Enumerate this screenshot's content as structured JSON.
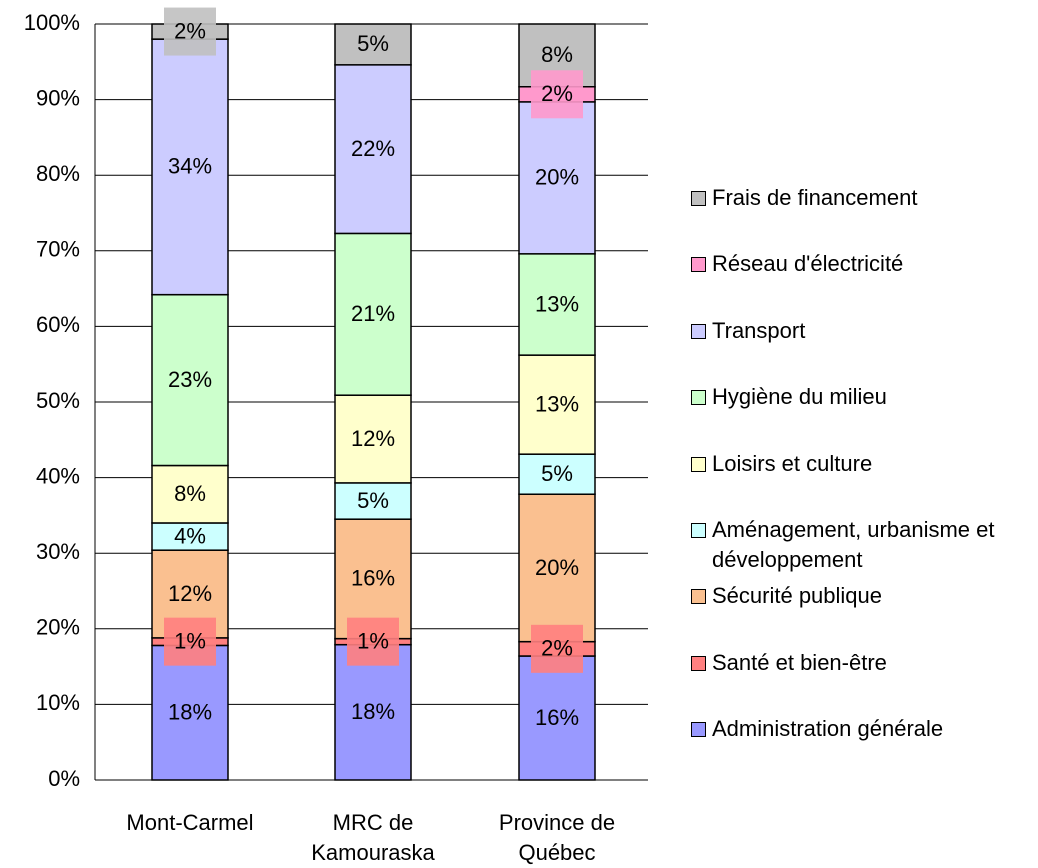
{
  "chart_data": {
    "type": "stacked_bar",
    "categories": [
      "Mont-Carmel",
      "MRC de Kamouraska",
      "Province de Québec"
    ],
    "series": [
      {
        "name": "Administration générale",
        "color": "#9999ff",
        "values": [
          17.8,
          17.9,
          16.4
        ],
        "value_labels": [
          "18%",
          "18%",
          "16%"
        ]
      },
      {
        "name": "Santé et bien-être",
        "color": "#ff8080",
        "values": [
          1.0,
          0.8,
          1.9
        ],
        "value_labels": [
          "1%",
          "1%",
          "2%"
        ]
      },
      {
        "name": "Sécurité publique",
        "color": "#fac090",
        "values": [
          11.6,
          15.8,
          19.5
        ],
        "value_labels": [
          "12%",
          "16%",
          "20%"
        ]
      },
      {
        "name": "Aménagement, urbanisme et développement",
        "color": "#ccffff",
        "values": [
          3.6,
          4.8,
          5.3
        ],
        "value_labels": [
          "4%",
          "5%",
          "5%"
        ]
      },
      {
        "name": "Loisirs et culture",
        "color": "#ffffcc",
        "values": [
          7.6,
          11.6,
          13.1
        ],
        "value_labels": [
          "8%",
          "12%",
          "13%"
        ]
      },
      {
        "name": "Hygiène du milieu",
        "color": "#ccffcc",
        "values": [
          22.6,
          21.4,
          13.4
        ],
        "value_labels": [
          "23%",
          "21%",
          "13%"
        ]
      },
      {
        "name": "Transport",
        "color": "#ccccff",
        "values": [
          33.8,
          22.3,
          20.1
        ],
        "value_labels": [
          "34%",
          "22%",
          "20%"
        ]
      },
      {
        "name": "Réseau d'électricité",
        "color": "#ff99cc",
        "values": [
          null,
          null,
          2.0
        ],
        "value_labels": [
          null,
          null,
          "2%"
        ]
      },
      {
        "name": "Frais de financement",
        "color": "#c0c0c0",
        "values": [
          2.0,
          5.4,
          8.3
        ],
        "value_labels": [
          "2%",
          "5%",
          "8%"
        ]
      }
    ],
    "ylim": [
      0,
      100
    ],
    "yticks": [
      {
        "value": 0,
        "label": "0%"
      },
      {
        "value": 10,
        "label": "10%"
      },
      {
        "value": 20,
        "label": "20%"
      },
      {
        "value": 30,
        "label": "30%"
      },
      {
        "value": 40,
        "label": "40%"
      },
      {
        "value": 50,
        "label": "50%"
      },
      {
        "value": 60,
        "label": "60%"
      },
      {
        "value": 70,
        "label": "70%"
      },
      {
        "value": 80,
        "label": "80%"
      },
      {
        "value": 90,
        "label": "90%"
      },
      {
        "value": 100,
        "label": "100%"
      }
    ],
    "grid": true
  }
}
